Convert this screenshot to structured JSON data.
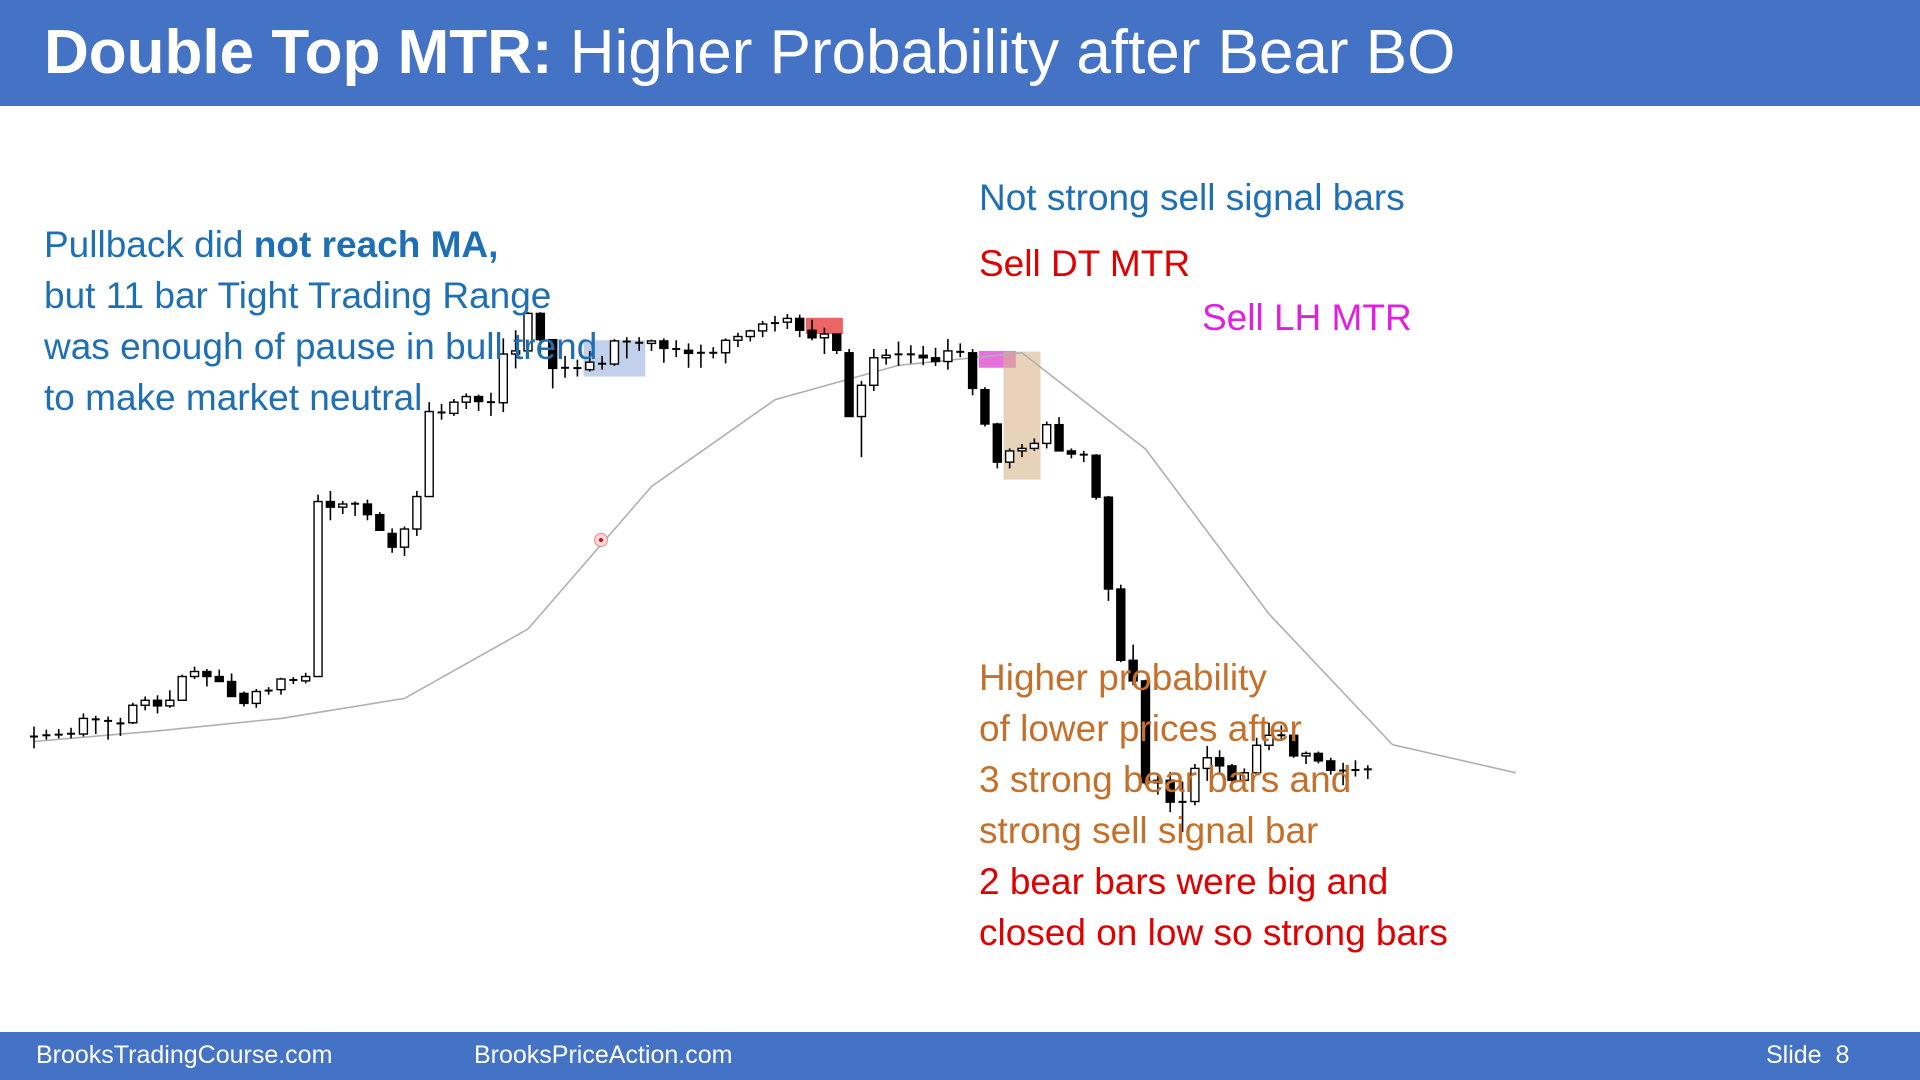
{
  "slide": {
    "title_bold": "Double Top MTR:",
    "title_rest": "Higher Probability after Bear BO",
    "footer": {
      "left_site": "BrooksTradingCourse.com",
      "mid_site": "BrooksPriceAction.com",
      "slide_label": "Slide",
      "slide_number": "8"
    }
  },
  "annotations": {
    "pullback_line1_plain": "Pullback did",
    "pullback_line1_bold": "not reach MA,",
    "pullback_line2": "but 11 bar Tight Trading Range",
    "pullback_line3": "was enough of pause in bull trend",
    "pullback_line4": "to make market neutral",
    "not_strong": "Not strong sell signal bars",
    "sell_dt": "Sell DT MTR",
    "sell_lh": "Sell LH MTR",
    "higher_prob_1": "Higher probability",
    "higher_prob_2": "of lower prices after",
    "higher_prob_3": "3 strong bear bars and",
    "higher_prob_4": "strong sell signal bar",
    "bear_bars_1": "2 bear bars were big and",
    "bear_bars_2": "closed on low so strong bars"
  },
  "colors": {
    "header": "#4472c4",
    "bull_body": "#ffffff",
    "bear_body": "#000000",
    "ma_line": "#b0b0b0",
    "tight_range_box": "#8ea9db",
    "dt_box": "#e84a4a",
    "lh_box": "#e040d0",
    "breakout_box": "#d9b48c",
    "text_blue": "#1f6fb5",
    "text_red": "#e00000",
    "text_magenta": "#e020e0",
    "text_orange": "#c5702a"
  },
  "chart_data": {
    "type": "candlestick",
    "title": "",
    "xlabel": "",
    "ylabel": "",
    "grid": false,
    "legend": "none",
    "price_direction": "higher price plotted higher; values are relative price units (no price axis shown)",
    "bars": [
      {
        "o": 63.8,
        "h": 65.5,
        "l": 62.0,
        "c": 64.0
      },
      {
        "o": 64.0,
        "h": 65.0,
        "l": 63.4,
        "c": 64.2
      },
      {
        "o": 64.1,
        "h": 65.1,
        "l": 63.6,
        "c": 64.3
      },
      {
        "o": 64.3,
        "h": 65.3,
        "l": 63.6,
        "c": 64.4
      },
      {
        "o": 64.3,
        "h": 67.6,
        "l": 63.9,
        "c": 66.8
      },
      {
        "o": 66.8,
        "h": 67.2,
        "l": 64.3,
        "c": 66.5
      },
      {
        "o": 66.5,
        "h": 67.1,
        "l": 63.4,
        "c": 66.3
      },
      {
        "o": 65.9,
        "h": 66.9,
        "l": 64.0,
        "c": 66.1
      },
      {
        "o": 66.1,
        "h": 69.3,
        "l": 65.9,
        "c": 68.9
      },
      {
        "o": 68.9,
        "h": 70.3,
        "l": 68.1,
        "c": 69.7
      },
      {
        "o": 69.7,
        "h": 70.5,
        "l": 67.6,
        "c": 68.8
      },
      {
        "o": 68.8,
        "h": 71.3,
        "l": 68.5,
        "c": 69.7
      },
      {
        "o": 69.7,
        "h": 73.8,
        "l": 69.6,
        "c": 73.5
      },
      {
        "o": 73.5,
        "h": 75.1,
        "l": 73.1,
        "c": 74.3
      },
      {
        "o": 74.3,
        "h": 74.7,
        "l": 71.9,
        "c": 73.5
      },
      {
        "o": 73.5,
        "h": 74.6,
        "l": 72.7,
        "c": 72.7
      },
      {
        "o": 72.7,
        "h": 74.0,
        "l": 71.0,
        "c": 70.3
      },
      {
        "o": 70.8,
        "h": 71.1,
        "l": 68.7,
        "c": 69.2
      },
      {
        "o": 69.2,
        "h": 71.5,
        "l": 68.5,
        "c": 71.1
      },
      {
        "o": 71.1,
        "h": 71.8,
        "l": 70.6,
        "c": 71.4
      },
      {
        "o": 71.4,
        "h": 73.3,
        "l": 70.6,
        "c": 73.1
      },
      {
        "o": 73.1,
        "h": 73.4,
        "l": 72.3,
        "c": 72.8
      },
      {
        "o": 72.8,
        "h": 74.1,
        "l": 72.4,
        "c": 73.5
      },
      {
        "o": 73.5,
        "h": 102.6,
        "l": 73.4,
        "c": 101.5
      },
      {
        "o": 101.5,
        "h": 103.2,
        "l": 98.5,
        "c": 100.6
      },
      {
        "o": 100.6,
        "h": 101.6,
        "l": 99.5,
        "c": 101.1
      },
      {
        "o": 101.2,
        "h": 101.5,
        "l": 99.2,
        "c": 101.1
      },
      {
        "o": 101.1,
        "h": 101.8,
        "l": 98.5,
        "c": 99.4
      },
      {
        "o": 99.4,
        "h": 99.8,
        "l": 96.8,
        "c": 96.9
      },
      {
        "o": 96.4,
        "h": 97.2,
        "l": 93.3,
        "c": 94.2
      },
      {
        "o": 94.2,
        "h": 97.5,
        "l": 92.8,
        "c": 97.1
      },
      {
        "o": 97.1,
        "h": 103.2,
        "l": 96.0,
        "c": 102.3
      },
      {
        "o": 102.3,
        "h": 117.4,
        "l": 102.2,
        "c": 115.9
      },
      {
        "o": 115.9,
        "h": 117.1,
        "l": 114.6,
        "c": 115.6
      },
      {
        "o": 115.6,
        "h": 117.9,
        "l": 115.2,
        "c": 117.4
      },
      {
        "o": 117.4,
        "h": 118.8,
        "l": 116.3,
        "c": 118.3
      },
      {
        "o": 118.3,
        "h": 118.6,
        "l": 116.0,
        "c": 117.5
      },
      {
        "o": 117.5,
        "h": 118.9,
        "l": 115.2,
        "c": 117.3
      },
      {
        "o": 117.3,
        "h": 127.6,
        "l": 115.8,
        "c": 125.1
      },
      {
        "o": 125.1,
        "h": 128.9,
        "l": 122.8,
        "c": 125.6
      },
      {
        "o": 125.6,
        "h": 131.8,
        "l": 125.1,
        "c": 131.6
      },
      {
        "o": 131.6,
        "h": 131.8,
        "l": 124.6,
        "c": 127.4
      },
      {
        "o": 127.4,
        "h": 127.4,
        "l": 119.6,
        "c": 122.8
      },
      {
        "o": 122.8,
        "h": 124.8,
        "l": 121.3,
        "c": 123.0
      },
      {
        "o": 123.0,
        "h": 124.2,
        "l": 121.5,
        "c": 122.7
      },
      {
        "o": 122.6,
        "h": 125.6,
        "l": 122.3,
        "c": 123.8
      },
      {
        "o": 123.6,
        "h": 124.8,
        "l": 122.6,
        "c": 123.5
      },
      {
        "o": 123.5,
        "h": 127.5,
        "l": 123.2,
        "c": 127.2
      },
      {
        "o": 127.2,
        "h": 127.8,
        "l": 124.4,
        "c": 127.0
      },
      {
        "o": 127.0,
        "h": 127.8,
        "l": 125.6,
        "c": 126.8
      },
      {
        "o": 126.8,
        "h": 127.4,
        "l": 125.6,
        "c": 127.2
      },
      {
        "o": 127.2,
        "h": 127.6,
        "l": 123.7,
        "c": 126.0
      },
      {
        "o": 126.0,
        "h": 127.3,
        "l": 124.6,
        "c": 125.8
      },
      {
        "o": 125.7,
        "h": 126.8,
        "l": 122.9,
        "c": 125.2
      },
      {
        "o": 125.2,
        "h": 126.6,
        "l": 122.9,
        "c": 125.4
      },
      {
        "o": 125.3,
        "h": 126.2,
        "l": 124.4,
        "c": 125.3
      },
      {
        "o": 125.3,
        "h": 127.6,
        "l": 123.6,
        "c": 127.3
      },
      {
        "o": 127.3,
        "h": 128.5,
        "l": 126.2,
        "c": 127.9
      },
      {
        "o": 127.9,
        "h": 129.0,
        "l": 127.1,
        "c": 128.8
      },
      {
        "o": 128.8,
        "h": 130.4,
        "l": 127.8,
        "c": 129.9
      },
      {
        "o": 129.9,
        "h": 131.2,
        "l": 128.7,
        "c": 130.2
      },
      {
        "o": 130.2,
        "h": 131.5,
        "l": 129.1,
        "c": 130.8
      },
      {
        "o": 130.8,
        "h": 131.4,
        "l": 127.8,
        "c": 128.9
      },
      {
        "o": 128.9,
        "h": 130.6,
        "l": 127.3,
        "c": 127.7
      },
      {
        "o": 127.7,
        "h": 129.3,
        "l": 125.1,
        "c": 128.3
      },
      {
        "o": 128.3,
        "h": 128.4,
        "l": 125.1,
        "c": 125.7
      },
      {
        "o": 125.3,
        "h": 125.9,
        "l": 115.1,
        "c": 115.1
      },
      {
        "o": 115.1,
        "h": 120.8,
        "l": 108.6,
        "c": 120.1
      },
      {
        "o": 120.1,
        "h": 125.9,
        "l": 119.2,
        "c": 124.5
      },
      {
        "o": 124.5,
        "h": 125.9,
        "l": 123.4,
        "c": 124.9
      },
      {
        "o": 124.9,
        "h": 127.1,
        "l": 123.2,
        "c": 125.2
      },
      {
        "o": 125.2,
        "h": 126.5,
        "l": 123.6,
        "c": 124.9
      },
      {
        "o": 124.9,
        "h": 126.4,
        "l": 123.3,
        "c": 124.5
      },
      {
        "o": 124.5,
        "h": 126.1,
        "l": 123.2,
        "c": 123.9
      },
      {
        "o": 123.9,
        "h": 127.5,
        "l": 122.6,
        "c": 125.6
      },
      {
        "o": 125.6,
        "h": 126.8,
        "l": 124.6,
        "c": 125.3
      },
      {
        "o": 125.3,
        "h": 125.9,
        "l": 118.5,
        "c": 119.6
      },
      {
        "o": 119.4,
        "h": 119.8,
        "l": 113.5,
        "c": 113.9
      },
      {
        "o": 113.9,
        "h": 114.1,
        "l": 106.8,
        "c": 107.8
      },
      {
        "o": 107.8,
        "h": 110.0,
        "l": 106.8,
        "c": 109.6
      },
      {
        "o": 109.6,
        "h": 110.7,
        "l": 108.6,
        "c": 110.0
      },
      {
        "o": 110.0,
        "h": 111.6,
        "l": 109.6,
        "c": 110.8
      },
      {
        "o": 110.8,
        "h": 114.3,
        "l": 110.0,
        "c": 113.8
      },
      {
        "o": 113.8,
        "h": 115.0,
        "l": 112.2,
        "c": 109.6
      },
      {
        "o": 109.6,
        "h": 110.0,
        "l": 108.4,
        "c": 109.1
      },
      {
        "o": 109.1,
        "h": 109.6,
        "l": 107.8,
        "c": 108.9
      },
      {
        "o": 108.9,
        "h": 109.1,
        "l": 101.8,
        "c": 102.2
      },
      {
        "o": 102.2,
        "h": 102.4,
        "l": 85.6,
        "c": 87.5
      },
      {
        "o": 87.5,
        "h": 88.2,
        "l": 75.8,
        "c": 76.1
      },
      {
        "o": 76.1,
        "h": 78.6,
        "l": 72.1,
        "c": 72.8
      },
      {
        "o": 72.8,
        "h": 73.0,
        "l": 56.1,
        "c": 56.5
      },
      {
        "o": 56.5,
        "h": 57.9,
        "l": 54.6,
        "c": 56.9
      },
      {
        "o": 56.9,
        "h": 58.2,
        "l": 51.8,
        "c": 53.4
      },
      {
        "o": 53.4,
        "h": 56.7,
        "l": 48.6,
        "c": 53.5
      },
      {
        "o": 53.5,
        "h": 59.5,
        "l": 52.9,
        "c": 58.8
      },
      {
        "o": 58.8,
        "h": 62.4,
        "l": 56.8,
        "c": 60.5
      },
      {
        "o": 60.5,
        "h": 61.7,
        "l": 57.9,
        "c": 59.2
      },
      {
        "o": 59.2,
        "h": 59.5,
        "l": 56.1,
        "c": 56.9
      },
      {
        "o": 56.9,
        "h": 58.8,
        "l": 55.8,
        "c": 58.1
      },
      {
        "o": 58.1,
        "h": 63.7,
        "l": 57.9,
        "c": 62.5
      },
      {
        "o": 62.5,
        "h": 66.1,
        "l": 61.7,
        "c": 64.1
      },
      {
        "o": 64.1,
        "h": 65.7,
        "l": 63.2,
        "c": 64.1
      },
      {
        "o": 64.1,
        "h": 65.3,
        "l": 60.5,
        "c": 60.8
      },
      {
        "o": 60.8,
        "h": 61.5,
        "l": 59.5,
        "c": 61.2
      },
      {
        "o": 61.2,
        "h": 61.5,
        "l": 59.6,
        "c": 60.0
      },
      {
        "o": 60.0,
        "h": 60.5,
        "l": 57.8,
        "c": 58.5
      },
      {
        "o": 58.5,
        "h": 59.7,
        "l": 56.1,
        "c": 58.4
      },
      {
        "o": 58.4,
        "h": 60.1,
        "l": 57.5,
        "c": 58.7
      },
      {
        "o": 58.7,
        "h": 59.3,
        "l": 57.1,
        "c": 58.6
      }
    ],
    "moving_average": [
      [
        0,
        63.1
      ],
      [
        10,
        64.8
      ],
      [
        20,
        66.8
      ],
      [
        30,
        70.0
      ],
      [
        40,
        81.1
      ],
      [
        50,
        103.9
      ],
      [
        60,
        117.8
      ],
      [
        70,
        123.3
      ],
      [
        80,
        125.3
      ],
      [
        90,
        109.9
      ],
      [
        100,
        83.5
      ],
      [
        110,
        62.6
      ],
      [
        120,
        58.1
      ]
    ],
    "highlight_boxes": [
      {
        "name": "tight-trading-range",
        "from_bar": 45,
        "to_bar": 49,
        "price_low": 121.5,
        "price_high": 127.3
      },
      {
        "name": "sell-dt-mtr",
        "from_bar": 63,
        "to_bar": 65,
        "price_low": 128.3,
        "price_high": 130.9
      },
      {
        "name": "sell-lh-mtr",
        "from_bar": 77,
        "to_bar": 79,
        "price_low": 122.9,
        "price_high": 125.6
      },
      {
        "name": "bear-breakout",
        "from_bar": 79,
        "to_bar": 81,
        "price_low": 105.0,
        "price_high": 125.5
      }
    ]
  }
}
